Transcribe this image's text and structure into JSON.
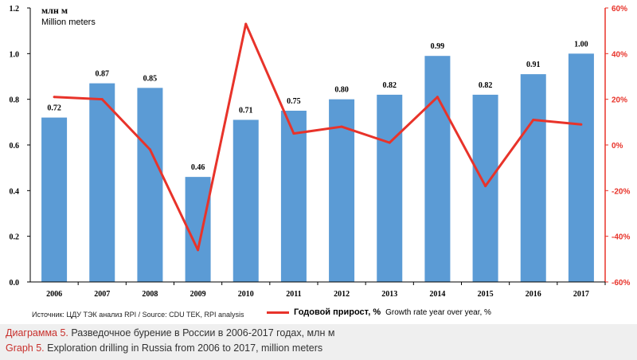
{
  "chart_data": {
    "type": "bar+line",
    "categories": [
      "2006",
      "2007",
      "2008",
      "2009",
      "2010",
      "2011",
      "2012",
      "2013",
      "2014",
      "2015",
      "2016",
      "2017"
    ],
    "series": [
      {
        "name": "Exploration drilling, million meters",
        "type": "bar",
        "axis": "left",
        "values": [
          0.72,
          0.87,
          0.85,
          0.46,
          0.71,
          0.75,
          0.8,
          0.82,
          0.99,
          0.82,
          0.91,
          1.0
        ],
        "labels": [
          "0.72",
          "0.87",
          "0.85",
          "0.46",
          "0.71",
          "0.75",
          "0.80",
          "0.82",
          "0.99",
          "0.82",
          "0.91",
          "1.00"
        ]
      },
      {
        "name": "Годовой прирост, %",
        "type": "line",
        "axis": "right",
        "values": [
          21,
          20,
          -2,
          -46,
          53,
          5,
          8,
          1,
          21,
          -18,
          11,
          9
        ]
      }
    ],
    "left_axis": {
      "min": 0,
      "max": 1.2,
      "ticks": [
        "0.0",
        "0.2",
        "0.4",
        "0.6",
        "0.8",
        "1.0",
        "1.2"
      ]
    },
    "right_axis": {
      "min": -60,
      "max": 60,
      "ticks": [
        "-60%",
        "-40%",
        "-20%",
        "0%",
        "20%",
        "40%",
        "60%"
      ]
    },
    "unit_ru": "млн м",
    "unit_en": "Million meters",
    "bar_color": "#5b9bd5",
    "line_color": "#e8332a"
  },
  "source": "Источник: ЦДУ ТЭК анализ RPI / Source: CDU TEK, RPI analysis",
  "legend": {
    "label_ru": "Годовой прирост, %",
    "label_en": "Growth rate year over year, %"
  },
  "caption": {
    "ru_label": "Диаграмма 5.",
    "ru_text": " Разведочное бурение в России в 2006-2017 годах, млн м",
    "en_label": "Graph 5.",
    "en_text": " Exploration drilling in Russia from 2006 to 2017, million meters"
  }
}
